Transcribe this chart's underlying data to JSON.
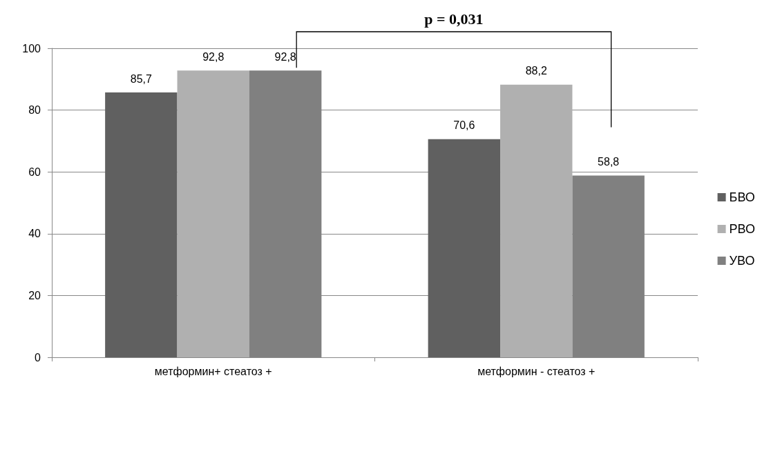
{
  "chart_data": {
    "type": "bar",
    "categories": [
      "метформин+ стеатоз +",
      "метформин - стеатоз +"
    ],
    "series": [
      {
        "name": "БВО",
        "color": "#606060",
        "values": [
          85.7,
          70.6
        ],
        "value_labels": [
          "85,7",
          "70,6"
        ]
      },
      {
        "name": "РВО",
        "color": "#b0b0b0",
        "values": [
          92.8,
          88.2
        ],
        "value_labels": [
          "92,8",
          "88,2"
        ]
      },
      {
        "name": "УВО",
        "color": "#808080",
        "values": [
          92.8,
          58.8
        ],
        "value_labels": [
          "92,8",
          "58,8"
        ]
      }
    ],
    "ylim": [
      0,
      100
    ],
    "yticks": [
      0,
      20,
      40,
      60,
      80,
      100
    ],
    "grid": "y",
    "legend": "right",
    "annotations": [
      "p = 0,031"
    ]
  }
}
